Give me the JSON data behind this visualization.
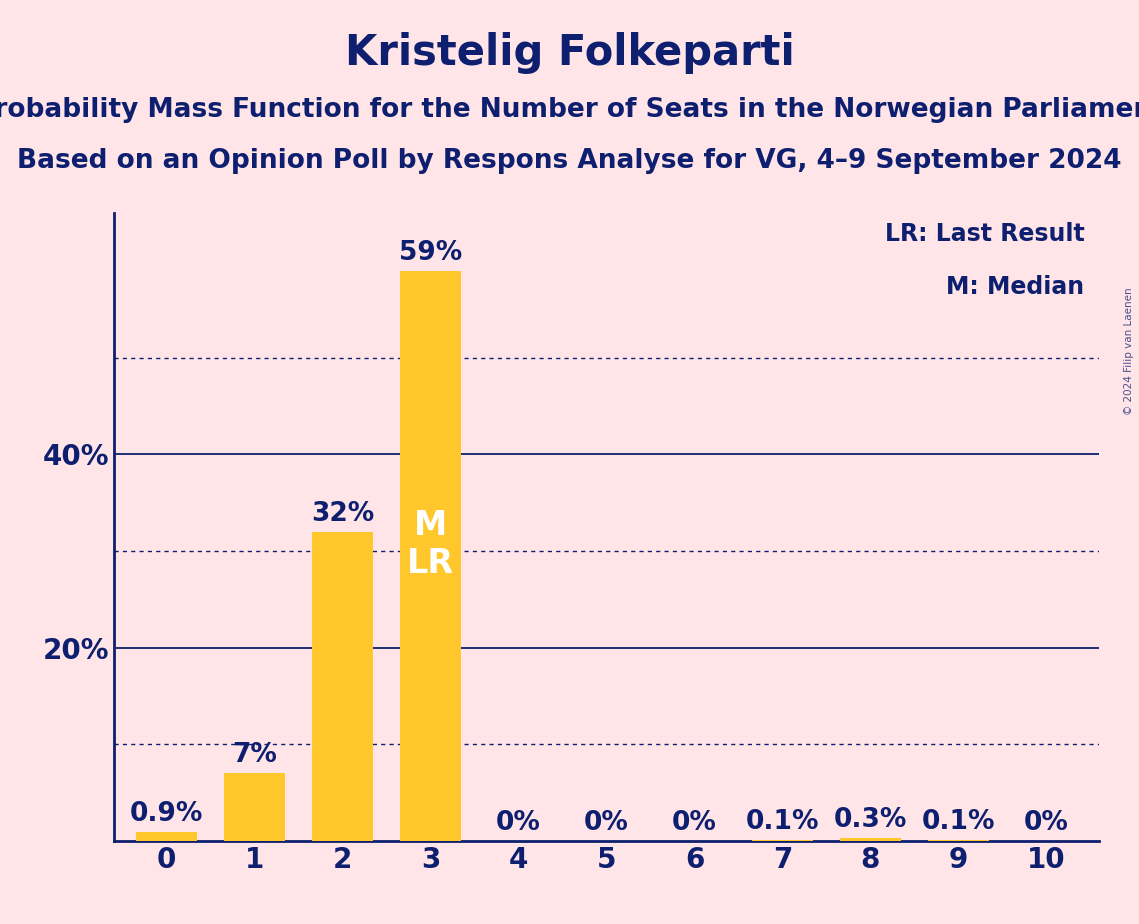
{
  "title": "Kristelig Folkeparti",
  "subtitle1": "Probability Mass Function for the Number of Seats in the Norwegian Parliament",
  "subtitle2": "Based on an Opinion Poll by Respons Analyse for VG, 4–9 September 2024",
  "copyright": "© 2024 Filip van Laenen",
  "categories": [
    0,
    1,
    2,
    3,
    4,
    5,
    6,
    7,
    8,
    9,
    10
  ],
  "values": [
    0.9,
    7.0,
    32.0,
    59.0,
    0.0,
    0.0,
    0.0,
    0.1,
    0.3,
    0.1,
    0.0
  ],
  "bar_color": "#FFC72C",
  "background_color": "#FFE4E8",
  "text_color": "#0D1F6E",
  "label_inside_bar": 3,
  "label_inside_text": "M\nLR",
  "label_inside_color": "#FFFFFF",
  "legend_lr": "LR: Last Result",
  "legend_m": "M: Median",
  "ylim": [
    0,
    65
  ],
  "yticks": [
    20,
    40
  ],
  "ytick_labels": [
    "20%",
    "40%"
  ],
  "dotted_gridlines": [
    10,
    30,
    50
  ],
  "solid_gridlines": [
    20,
    40
  ],
  "title_fontsize": 30,
  "subtitle_fontsize": 19,
  "bar_label_fontsize": 19,
  "axis_tick_fontsize": 20,
  "legend_fontsize": 17,
  "inside_label_fontsize": 24
}
